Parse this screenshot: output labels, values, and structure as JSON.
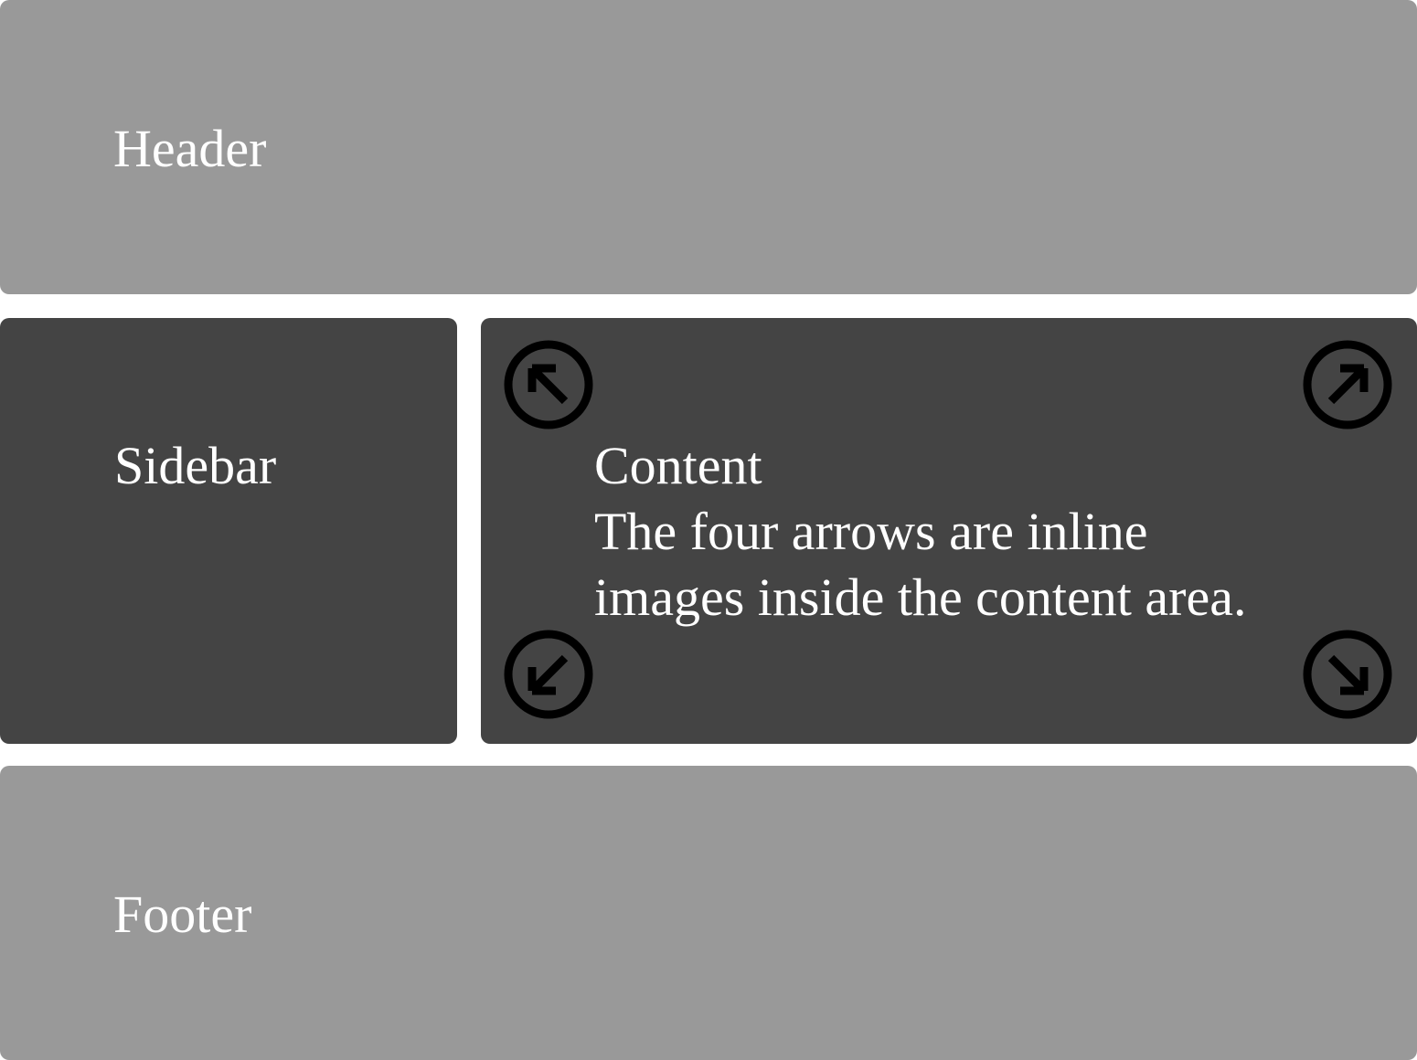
{
  "header": {
    "label": "Header"
  },
  "sidebar": {
    "label": "Sidebar"
  },
  "content": {
    "title": "Content",
    "description_line1": "The four arrows are inline",
    "description_line2": "images inside the content area.",
    "arrows": [
      {
        "icon": "arrow-up-left-circle-icon"
      },
      {
        "icon": "arrow-up-right-circle-icon"
      },
      {
        "icon": "arrow-down-left-circle-icon"
      },
      {
        "icon": "arrow-down-right-circle-icon"
      }
    ]
  },
  "footer": {
    "label": "Footer"
  },
  "colors": {
    "header_footer_bg": "#999999",
    "sidebar_content_bg": "#444444",
    "text": "#ffffff",
    "arrow": "#000000"
  }
}
